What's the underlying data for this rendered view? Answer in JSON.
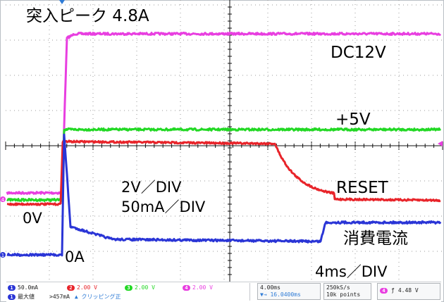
{
  "annotations": {
    "inrush_peak": "突入ピーク 4.8A",
    "dc12v": "DC12V",
    "plus5v": "+5V",
    "reset": "RESET",
    "volt_div": "2V／DIV",
    "current_div": "50mA／DIV",
    "zero_v": "0V",
    "zero_a": "0A",
    "current_consumption": "消費電流",
    "time_div": "4ms／DIV"
  },
  "colors": {
    "ch1": "#2a35d6",
    "ch2": "#e8242a",
    "ch3": "#22d824",
    "ch4": "#e83ee0",
    "grid": "#111111",
    "trigger_marker": "#2e7bd6"
  },
  "status_bar": {
    "ch1_scale": "50.0mA",
    "ch2_scale": "2.00 V",
    "ch3_scale": "2.00 V",
    "ch4_scale": "2.00 V",
    "measure_label": "最大値",
    "measure_value": ">457mA",
    "clipping_warning": "▲ クリッピング正",
    "time_scale": "4.00ms",
    "time_position": "16.0400ms",
    "sample_rate": "250kS/s",
    "record_length": "10k points",
    "trigger_channel": "4",
    "trigger_level": "4.48 V"
  }
}
